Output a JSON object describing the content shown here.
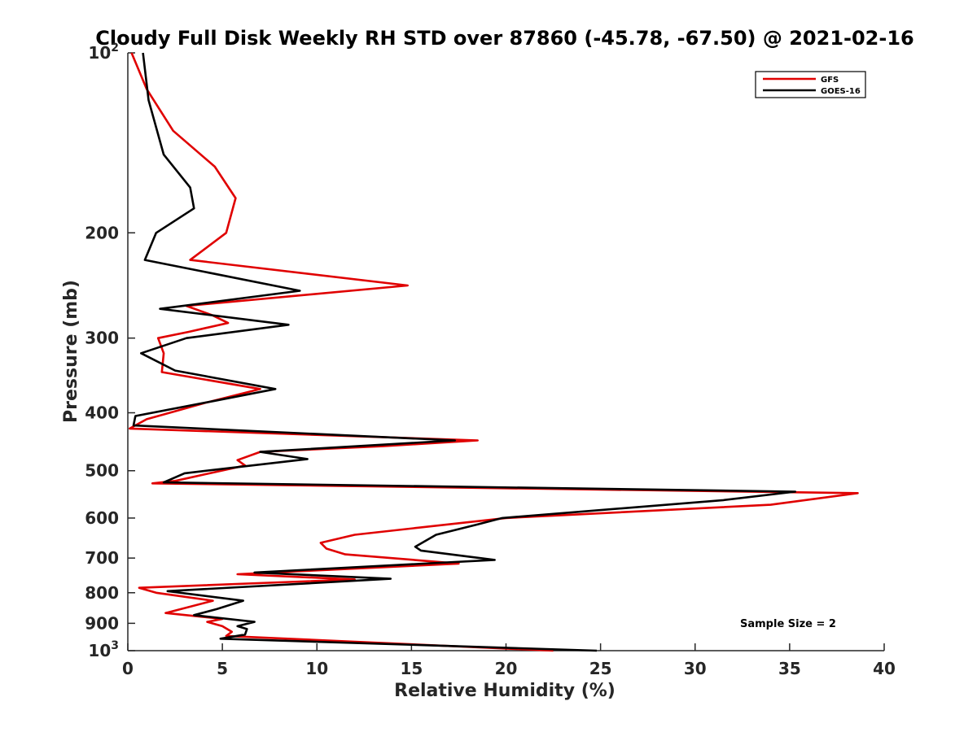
{
  "chart_data": {
    "type": "line",
    "title": "Cloudy Full Disk Weekly RH STD over 87860 (-45.78, -67.50) @ 2021-02-16",
    "xlabel": "Relative Humidity (%)",
    "ylabel": "Pressure (mb)",
    "xlim": [
      0,
      40
    ],
    "ylim": [
      100,
      1000
    ],
    "yscale": "log",
    "y_reversed": true,
    "x_ticks": [
      "0",
      "5",
      "10",
      "15",
      "20",
      "25",
      "30",
      "35",
      "40"
    ],
    "y_ticks": [
      {
        "value": 100,
        "base": "10",
        "exp": "2"
      },
      {
        "value": 200,
        "label": "200"
      },
      {
        "value": 300,
        "label": "300"
      },
      {
        "value": 400,
        "label": "400"
      },
      {
        "value": 500,
        "label": "500"
      },
      {
        "value": 600,
        "label": "600"
      },
      {
        "value": 700,
        "label": "700"
      },
      {
        "value": 800,
        "label": "800"
      },
      {
        "value": 900,
        "label": "900"
      },
      {
        "value": 1000,
        "base": "10",
        "exp": "3"
      }
    ],
    "grid": false,
    "legend_position": "top-right",
    "series": [
      {
        "name": "GFS",
        "color": "#e00000",
        "points": [
          [
            0.2,
            100
          ],
          [
            1.0,
            115
          ],
          [
            2.4,
            135
          ],
          [
            4.6,
            155
          ],
          [
            5.7,
            175
          ],
          [
            5.2,
            200
          ],
          [
            3.3,
            222
          ],
          [
            14.8,
            245
          ],
          [
            3.1,
            265
          ],
          [
            4.5,
            275
          ],
          [
            5.3,
            283
          ],
          [
            3.2,
            293
          ],
          [
            1.6,
            300
          ],
          [
            1.9,
            318
          ],
          [
            1.8,
            342
          ],
          [
            7.0,
            365
          ],
          [
            4.1,
            385
          ],
          [
            1.0,
            410
          ],
          [
            0.1,
            425
          ],
          [
            18.5,
            445
          ],
          [
            13.5,
            455
          ],
          [
            7.0,
            465
          ],
          [
            5.8,
            480
          ],
          [
            6.2,
            490
          ],
          [
            2.5,
            520
          ],
          [
            1.3,
            525
          ],
          [
            38.6,
            545
          ],
          [
            34.0,
            570
          ],
          [
            20.0,
            600
          ],
          [
            12.0,
            640
          ],
          [
            10.2,
            660
          ],
          [
            10.5,
            675
          ],
          [
            11.5,
            690
          ],
          [
            17.5,
            715
          ],
          [
            5.8,
            745
          ],
          [
            12.0,
            760
          ],
          [
            0.6,
            785
          ],
          [
            1.5,
            800
          ],
          [
            4.5,
            825
          ],
          [
            2.0,
            865
          ],
          [
            5.0,
            885
          ],
          [
            4.2,
            895
          ],
          [
            5.0,
            910
          ],
          [
            5.5,
            930
          ],
          [
            5.2,
            945
          ],
          [
            22.5,
            1000
          ]
        ]
      },
      {
        "name": "GOES-16",
        "color": "#000000",
        "points": [
          [
            0.8,
            100
          ],
          [
            1.1,
            120
          ],
          [
            1.9,
            148
          ],
          [
            3.3,
            168
          ],
          [
            3.5,
            182
          ],
          [
            1.5,
            200
          ],
          [
            0.9,
            222
          ],
          [
            9.1,
            250
          ],
          [
            1.7,
            268
          ],
          [
            8.5,
            285
          ],
          [
            3.1,
            300
          ],
          [
            0.7,
            318
          ],
          [
            2.5,
            340
          ],
          [
            7.8,
            365
          ],
          [
            4.6,
            382
          ],
          [
            0.4,
            405
          ],
          [
            0.3,
            420
          ],
          [
            17.3,
            445
          ],
          [
            7.0,
            465
          ],
          [
            9.5,
            478
          ],
          [
            3.0,
            505
          ],
          [
            1.9,
            523
          ],
          [
            35.3,
            542
          ],
          [
            31.5,
            560
          ],
          [
            19.8,
            600
          ],
          [
            18.5,
            615
          ],
          [
            16.3,
            640
          ],
          [
            15.2,
            670
          ],
          [
            15.5,
            680
          ],
          [
            19.4,
            705
          ],
          [
            6.7,
            740
          ],
          [
            13.9,
            758
          ],
          [
            2.1,
            795
          ],
          [
            6.1,
            825
          ],
          [
            4.7,
            852
          ],
          [
            3.5,
            872
          ],
          [
            6.7,
            895
          ],
          [
            5.8,
            910
          ],
          [
            6.3,
            920
          ],
          [
            6.2,
            940
          ],
          [
            4.9,
            955
          ],
          [
            24.8,
            1000
          ]
        ]
      }
    ],
    "annotation": "Sample Size = 2"
  }
}
